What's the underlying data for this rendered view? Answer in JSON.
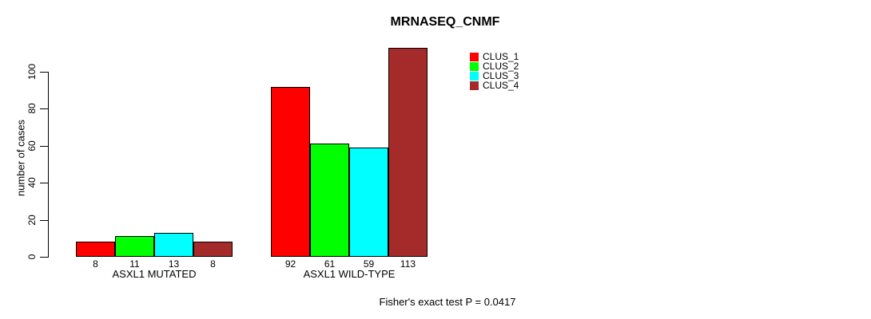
{
  "chart_data": {
    "type": "bar",
    "title": "MRNASEQ_CNMF",
    "ylabel": "number of cases",
    "xlabel": "",
    "categories": [
      "ASXL1 MUTATED",
      "ASXL1 WILD-TYPE"
    ],
    "series": [
      {
        "name": "CLUS_1",
        "color": "#ff0000",
        "values": [
          8,
          92
        ]
      },
      {
        "name": "CLUS_2",
        "color": "#00ff00",
        "values": [
          11,
          61
        ]
      },
      {
        "name": "CLUS_3",
        "color": "#00ffff",
        "values": [
          13,
          59
        ]
      },
      {
        "name": "CLUS_4",
        "color": "#a52a2a",
        "values": [
          8,
          113
        ]
      }
    ],
    "bar_value_labels": [
      [
        "8",
        "11",
        "13",
        "8"
      ],
      [
        "92",
        "61",
        "59",
        "113"
      ]
    ],
    "yticks": [
      0,
      20,
      40,
      60,
      80,
      100
    ],
    "ylim": [
      0,
      113
    ],
    "grid": false,
    "legend_position": "top-right-inside",
    "annotation": "Fisher's exact test P = 0.0417"
  }
}
